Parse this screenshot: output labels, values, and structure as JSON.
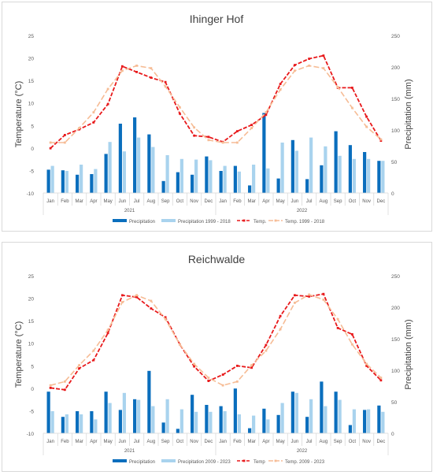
{
  "chart_data": [
    {
      "type": "bar+line",
      "title": "Ihinger Hof",
      "ylabel_left": "Temperature (°C)",
      "ylabel_right": "Precipitation (mm)",
      "ylim_left": [
        -10,
        25
      ],
      "ylim_right": [
        0,
        250
      ],
      "yticks_left": [
        "-10",
        "-5",
        "0",
        "5",
        "10",
        "15",
        "20",
        "25"
      ],
      "yticks_right": [
        "0",
        "50",
        "100",
        "150",
        "200",
        "250"
      ],
      "categories": [
        "Jan",
        "Feb",
        "Mar",
        "Apr",
        "May",
        "Jun",
        "Jul",
        "Aug",
        "Sep",
        "Oct",
        "Nov",
        "Dec",
        "Jan",
        "Feb",
        "Mar",
        "Apr",
        "May",
        "Jun",
        "Jul",
        "Aug",
        "Sep",
        "Oct",
        "Nov",
        "Dec"
      ],
      "groups": [
        {
          "label": "2021",
          "start": 0,
          "end": 11
        },
        {
          "label": "2022",
          "start": 12,
          "end": 23
        }
      ],
      "legend_position": "bottom",
      "colors": {
        "precip": "#0a6ebd",
        "precip_ref": "#a9d3ee",
        "temp": "#e8191b",
        "temp_ref": "#f6bc95"
      },
      "series": [
        {
          "name": "Precipitation",
          "kind": "bar",
          "axis": "right",
          "values": [
            37,
            36,
            29,
            30,
            62,
            110,
            120,
            93,
            19,
            33,
            29,
            58,
            35,
            43,
            12,
            127,
            23,
            84,
            22,
            44,
            98,
            76,
            65,
            51
          ]
        },
        {
          "name": "Precipitation 1999 - 2018",
          "kind": "bar",
          "axis": "right",
          "values": [
            43,
            35,
            45,
            38,
            81,
            66,
            88,
            73,
            60,
            54,
            53,
            52,
            43,
            34,
            45,
            39,
            80,
            67,
            88,
            74,
            59,
            54,
            54,
            51
          ]
        },
        {
          "name": "Temp.",
          "kind": "line",
          "axis": "right",
          "values": [
            71,
            92,
            101,
            112,
            141,
            201,
            192,
            183,
            176,
            126,
            91,
            89,
            81,
            98,
            108,
            124,
            173,
            203,
            213,
            218,
            167,
            167,
            121,
            83
          ]
        },
        {
          "name": "Temp. 1999 - 2018",
          "kind": "line",
          "axis": "right",
          "values": [
            80,
            80,
            103,
            128,
            165,
            194,
            202,
            198,
            169,
            136,
            104,
            84,
            80,
            80,
            103,
            128,
            164,
            194,
            202,
            198,
            168,
            135,
            105,
            85
          ]
        }
      ]
    },
    {
      "type": "bar+line",
      "title": "Reichwalde",
      "ylabel_left": "Temperature (°C)",
      "ylabel_right": "Precipitation (mm)",
      "ylim_left": [
        -10,
        25
      ],
      "ylim_right": [
        0,
        250
      ],
      "yticks_left": [
        "-10",
        "-5",
        "0",
        "5",
        "10",
        "15",
        "20",
        "25"
      ],
      "yticks_right": [
        "0",
        "50",
        "100",
        "150",
        "200",
        "250"
      ],
      "categories": [
        "Jan",
        "Feb",
        "Mar",
        "Apr",
        "May",
        "Jun",
        "Jul",
        "Aug",
        "Sep",
        "Oct",
        "Nov",
        "Dec",
        "Jan",
        "Feb",
        "Mar",
        "Apr",
        "May",
        "Jun",
        "Jul",
        "Aug",
        "Sep",
        "Oct",
        "Nov",
        "Dec"
      ],
      "groups": [
        {
          "label": "2021",
          "start": 0,
          "end": 11
        },
        {
          "label": "2022",
          "start": 12,
          "end": 23
        }
      ],
      "legend_position": "bottom",
      "colors": {
        "precip": "#0a6ebd",
        "precip_ref": "#a9d3ee",
        "temp": "#e8191b",
        "temp_ref": "#f6bc95"
      },
      "series": [
        {
          "name": "Precipitation",
          "kind": "bar",
          "axis": "right",
          "values": [
            66,
            26,
            35,
            35,
            66,
            37,
            54,
            99,
            17,
            7,
            61,
            45,
            43,
            71,
            8,
            39,
            29,
            66,
            26,
            82,
            66,
            13,
            37,
            44
          ]
        },
        {
          "name": "Precipitation 2009 - 2023",
          "kind": "bar",
          "axis": "right",
          "values": [
            35,
            30,
            30,
            22,
            48,
            64,
            53,
            43,
            54,
            38,
            34,
            34,
            35,
            30,
            28,
            22,
            48,
            64,
            54,
            43,
            53,
            38,
            38,
            34
          ]
        },
        {
          "name": "Temp",
          "kind": "line",
          "axis": "right",
          "values": [
            72,
            69,
            103,
            116,
            159,
            219,
            216,
            198,
            184,
            141,
            106,
            83,
            93,
            107,
            104,
            140,
            186,
            219,
            217,
            221,
            167,
            157,
            107,
            84
          ]
        },
        {
          "name": "Temp. 2009 - 2023",
          "kind": "line",
          "axis": "right",
          "values": [
            76,
            82,
            108,
            131,
            164,
            208,
            219,
            210,
            181,
            141,
            110,
            88,
            76,
            82,
            108,
            131,
            165,
            207,
            220,
            212,
            181,
            141,
            110,
            88
          ]
        }
      ]
    }
  ]
}
